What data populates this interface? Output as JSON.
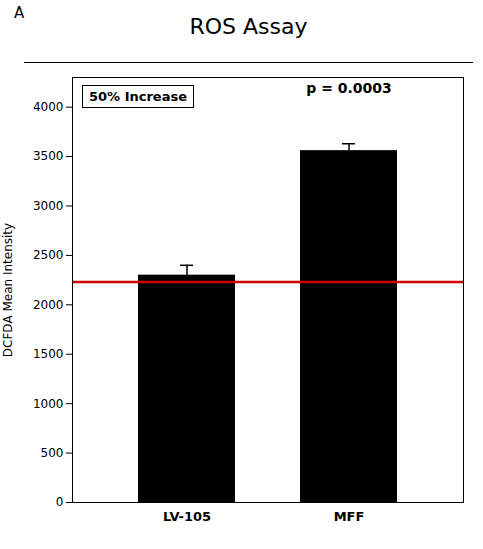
{
  "chart_data": {
    "type": "bar",
    "panel_label": "A",
    "title": "ROS Assay",
    "categories": [
      "LV-105",
      "MFF"
    ],
    "values": [
      2300,
      3560
    ],
    "errors": [
      100,
      70
    ],
    "color": "#000000",
    "ylabel": "DCFDA Mean Intensity",
    "ylim": [
      0,
      4300
    ],
    "yticks": [
      0,
      500,
      1000,
      1500,
      2000,
      2500,
      3000,
      3500,
      4000
    ],
    "grid": false,
    "reference_line": {
      "y": 2230,
      "color": "#cc0000"
    },
    "annotations": [
      {
        "text": "50% Increase"
      },
      {
        "text": "p = 0.0003",
        "category": "MFF"
      }
    ]
  }
}
